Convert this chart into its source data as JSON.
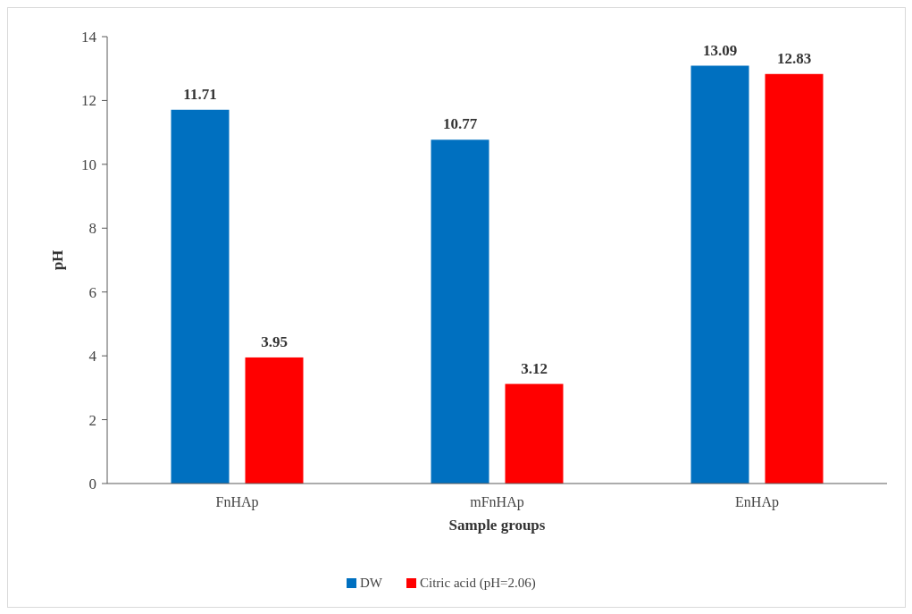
{
  "chart_data": {
    "type": "bar",
    "xlabel": "Sample groups",
    "ylabel": "pH",
    "categories": [
      "FnHAp",
      "mFnHAp",
      "EnHAp"
    ],
    "series": [
      {
        "name": "DW",
        "color": "#0070c0",
        "values": [
          11.71,
          10.77,
          13.09
        ]
      },
      {
        "name": "Citric acid (pH=2.06)",
        "color": "#ff0000",
        "values": [
          3.95,
          3.12,
          12.83
        ]
      }
    ],
    "ylim": [
      0,
      14
    ],
    "yticks": [
      0,
      2,
      4,
      6,
      8,
      10,
      12,
      14
    ],
    "grid": false,
    "legend": "bottom",
    "data_labels": true
  }
}
